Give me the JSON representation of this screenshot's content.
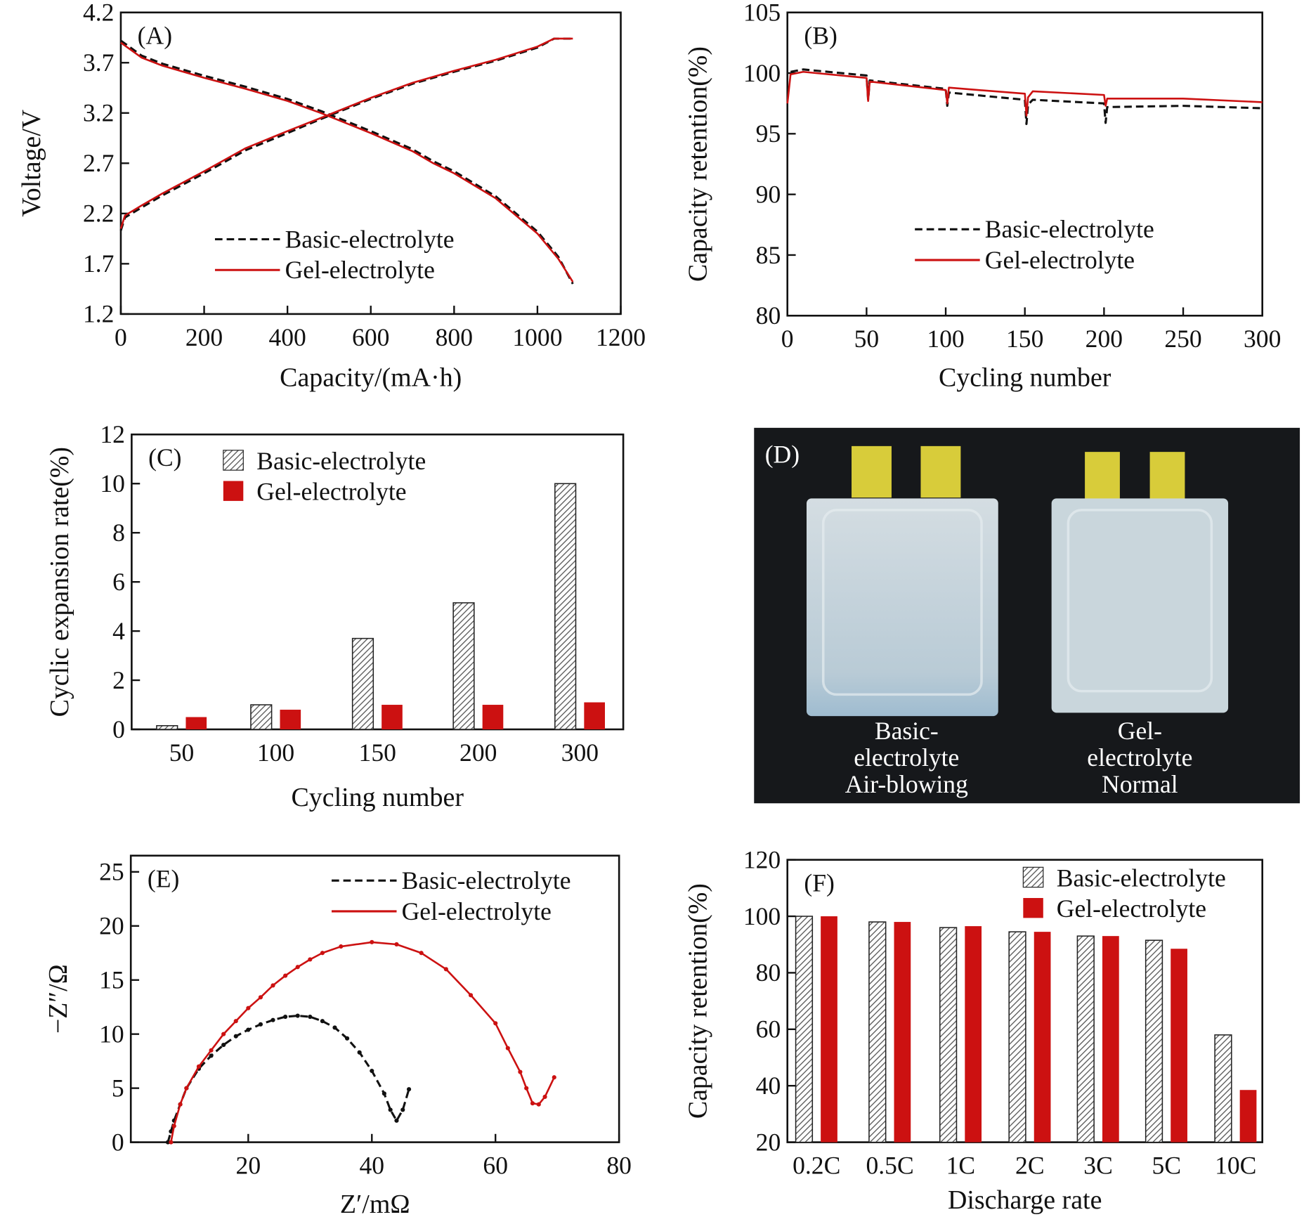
{
  "colors": {
    "basic": "#111111",
    "gel": "#cc1111",
    "hatch": "#555555",
    "photo_bg": "#16181b",
    "pouch": "#c9d6dc",
    "tab": "#d8cc3a"
  },
  "chart_data": [
    {
      "id": "A",
      "type": "line",
      "panel_label": "(A)",
      "xlabel": "Capacity/(mA·h)",
      "ylabel": "Voltage/V",
      "xlim": [
        0,
        1200
      ],
      "ylim": [
        1.2,
        4.2
      ],
      "xticks": [
        0,
        200,
        400,
        600,
        800,
        1000,
        1200
      ],
      "yticks": [
        "1.2",
        "1.7",
        "2.2",
        "2.7",
        "3.2",
        "3.7",
        "4.2"
      ],
      "legend": "center-bottom",
      "series": [
        {
          "name": "Basic-electrolyte",
          "style": "dashed",
          "color": "#111111",
          "segments": [
            [
              [
                0,
                3.92
              ],
              [
                50,
                3.77
              ],
              [
                100,
                3.69
              ],
              [
                200,
                3.57
              ],
              [
                300,
                3.46
              ],
              [
                400,
                3.34
              ],
              [
                480,
                3.22
              ],
              [
                600,
                3.02
              ],
              [
                700,
                2.84
              ],
              [
                750,
                2.72
              ],
              [
                800,
                2.62
              ],
              [
                900,
                2.37
              ],
              [
                1000,
                2.02
              ],
              [
                1050,
                1.77
              ],
              [
                1085,
                1.5
              ]
            ],
            [
              [
                0,
                2.03
              ],
              [
                10,
                2.16
              ],
              [
                50,
                2.26
              ],
              [
                100,
                2.38
              ],
              [
                200,
                2.6
              ],
              [
                300,
                2.83
              ],
              [
                400,
                3.0
              ],
              [
                480,
                3.14
              ],
              [
                600,
                3.34
              ],
              [
                700,
                3.49
              ],
              [
                800,
                3.61
              ],
              [
                900,
                3.72
              ],
              [
                1000,
                3.85
              ],
              [
                1040,
                3.94
              ],
              [
                1085,
                3.94
              ]
            ]
          ]
        },
        {
          "name": "Gel-electrolyte",
          "style": "solid",
          "color": "#cc1111",
          "segments": [
            [
              [
                0,
                3.9
              ],
              [
                50,
                3.75
              ],
              [
                100,
                3.67
              ],
              [
                200,
                3.55
              ],
              [
                300,
                3.44
              ],
              [
                400,
                3.32
              ],
              [
                480,
                3.2
              ],
              [
                600,
                3.0
              ],
              [
                700,
                2.82
              ],
              [
                750,
                2.7
              ],
              [
                800,
                2.6
              ],
              [
                900,
                2.35
              ],
              [
                1000,
                2.0
              ],
              [
                1050,
                1.75
              ],
              [
                1085,
                1.52
              ]
            ],
            [
              [
                0,
                2.05
              ],
              [
                10,
                2.18
              ],
              [
                50,
                2.28
              ],
              [
                100,
                2.4
              ],
              [
                200,
                2.62
              ],
              [
                300,
                2.85
              ],
              [
                400,
                3.02
              ],
              [
                480,
                3.15
              ],
              [
                600,
                3.35
              ],
              [
                700,
                3.5
              ],
              [
                800,
                3.62
              ],
              [
                900,
                3.73
              ],
              [
                1000,
                3.86
              ],
              [
                1040,
                3.94
              ],
              [
                1085,
                3.94
              ]
            ]
          ]
        }
      ]
    },
    {
      "id": "B",
      "type": "line",
      "panel_label": "(B)",
      "xlabel": "Cycling number",
      "ylabel": "Capacity retention(%)",
      "xlim": [
        0,
        300
      ],
      "ylim": [
        80,
        105
      ],
      "xticks": [
        0,
        50,
        100,
        150,
        200,
        250,
        300
      ],
      "yticks": [
        "80",
        "85",
        "90",
        "95",
        "100",
        "105"
      ],
      "legend": "center-right",
      "series": [
        {
          "name": "Basic-electrolyte",
          "style": "dashed",
          "color": "#111111",
          "segments": [
            [
              [
                2,
                100.1
              ],
              [
                10,
                100.3
              ],
              [
                50,
                99.8
              ],
              [
                51,
                97.8
              ],
              [
                52,
                99.4
              ],
              [
                100,
                98.7
              ],
              [
                101,
                97.3
              ],
              [
                102,
                98.4
              ],
              [
                150,
                97.8
              ],
              [
                151,
                95.8
              ],
              [
                152,
                97.4
              ],
              [
                155,
                97.8
              ],
              [
                200,
                97.5
              ],
              [
                201,
                95.9
              ],
              [
                202,
                97.2
              ],
              [
                250,
                97.3
              ],
              [
                300,
                97.1
              ]
            ]
          ]
        },
        {
          "name": "Gel-electrolyte",
          "style": "solid",
          "color": "#cc1111",
          "segments": [
            [
              [
                0,
                97.5
              ],
              [
                2,
                99.9
              ],
              [
                10,
                100.1
              ],
              [
                50,
                99.6
              ],
              [
                51,
                97.7
              ],
              [
                52,
                99.3
              ],
              [
                100,
                98.6
              ],
              [
                101,
                97.5
              ],
              [
                102,
                98.8
              ],
              [
                150,
                98.3
              ],
              [
                151,
                96.5
              ],
              [
                152,
                98.0
              ],
              [
                155,
                98.5
              ],
              [
                200,
                98.2
              ],
              [
                201,
                97.3
              ],
              [
                202,
                97.9
              ],
              [
                250,
                97.9
              ],
              [
                300,
                97.6
              ]
            ]
          ]
        }
      ]
    },
    {
      "id": "C",
      "type": "bar",
      "panel_label": "(C)",
      "xlabel": "Cycling number",
      "ylabel": "Cyclic expansion rate(%)",
      "ylim": [
        0,
        12
      ],
      "yticks": [
        "0",
        "2",
        "4",
        "6",
        "8",
        "10",
        "12"
      ],
      "categories": [
        "50",
        "100",
        "150",
        "200",
        "300"
      ],
      "legend": "top-left",
      "series": [
        {
          "name": "Basic-electrolyte",
          "fill": "hatch",
          "values": [
            0.15,
            1.0,
            3.7,
            5.15,
            10.0
          ]
        },
        {
          "name": "Gel-electrolyte",
          "fill": "#cc1111",
          "values": [
            0.5,
            0.8,
            1.0,
            1.0,
            1.1
          ]
        }
      ]
    },
    {
      "id": "E",
      "type": "scatter",
      "panel_label": "(E)",
      "xlabel": "Z′/mΩ",
      "ylabel": "−Z″/Ω",
      "xlim": [
        1,
        80
      ],
      "ylim": [
        0,
        26.5
      ],
      "xticks": [
        20,
        40,
        60,
        80
      ],
      "yticks": [
        "0",
        "5",
        "10",
        "15",
        "20",
        "25"
      ],
      "legend": "top-right",
      "series": [
        {
          "name": "Basic-electrolyte",
          "style": "dashed",
          "color": "#111111",
          "segments": [
            [
              [
                7,
                0
              ],
              [
                7.5,
                1
              ],
              [
                8,
                2
              ],
              [
                9,
                3.5
              ],
              [
                10,
                5
              ],
              [
                12,
                6.8
              ],
              [
                14,
                8
              ],
              [
                16,
                9
              ],
              [
                18,
                9.8
              ],
              [
                20,
                10.4
              ],
              [
                22,
                10.9
              ],
              [
                24,
                11.3
              ],
              [
                26,
                11.6
              ],
              [
                28,
                11.7
              ],
              [
                30,
                11.6
              ],
              [
                32,
                11.2
              ],
              [
                34,
                10.6
              ],
              [
                36,
                9.6
              ],
              [
                38,
                8.3
              ],
              [
                40,
                6.6
              ],
              [
                42,
                4.5
              ],
              [
                43,
                3
              ],
              [
                44,
                2
              ],
              [
                45,
                3
              ],
              [
                46,
                4.9
              ]
            ]
          ]
        },
        {
          "name": "Gel-electrolyte",
          "style": "solid",
          "color": "#cc1111",
          "segments": [
            [
              [
                7.5,
                0
              ],
              [
                8,
                1.5
              ],
              [
                9,
                3.5
              ],
              [
                10,
                5
              ],
              [
                12,
                7
              ],
              [
                14,
                8.5
              ],
              [
                16,
                10
              ],
              [
                18,
                11.2
              ],
              [
                20,
                12.4
              ],
              [
                22,
                13.4
              ],
              [
                24,
                14.5
              ],
              [
                26,
                15.4
              ],
              [
                28,
                16.2
              ],
              [
                30,
                16.9
              ],
              [
                32,
                17.5
              ],
              [
                35,
                18.1
              ],
              [
                40,
                18.5
              ],
              [
                44,
                18.3
              ],
              [
                48,
                17.5
              ],
              [
                52,
                16
              ],
              [
                56,
                13.6
              ],
              [
                60,
                11
              ],
              [
                62,
                8.7
              ],
              [
                64,
                6.5
              ],
              [
                65,
                5
              ],
              [
                66,
                3.6
              ],
              [
                67,
                3.5
              ],
              [
                68,
                4.2
              ],
              [
                69.5,
                6
              ]
            ]
          ]
        }
      ]
    },
    {
      "id": "F",
      "type": "bar",
      "panel_label": "(F)",
      "xlabel": "Discharge rate",
      "ylabel": "Capacity retention(%)",
      "ylim": [
        20,
        120
      ],
      "yticks": [
        "20",
        "40",
        "60",
        "80",
        "100",
        "120"
      ],
      "categories": [
        "0.2C",
        "0.5C",
        "1C",
        "2C",
        "3C",
        "5C",
        "10C"
      ],
      "legend": "top-right",
      "series": [
        {
          "name": "Basic-electrolyte",
          "fill": "hatch",
          "values": [
            100,
            98,
            96,
            94.5,
            93,
            91.5,
            58
          ]
        },
        {
          "name": "Gel-electrolyte",
          "fill": "#cc1111",
          "values": [
            100,
            98,
            96.5,
            94.5,
            93,
            88.5,
            38.5
          ]
        }
      ]
    }
  ],
  "photo": {
    "panel_label": "(D)",
    "left_caption": [
      "Basic-",
      "electrolyte",
      "Air-blowing"
    ],
    "right_caption": [
      "Gel-",
      "electrolyte",
      "Normal"
    ]
  }
}
